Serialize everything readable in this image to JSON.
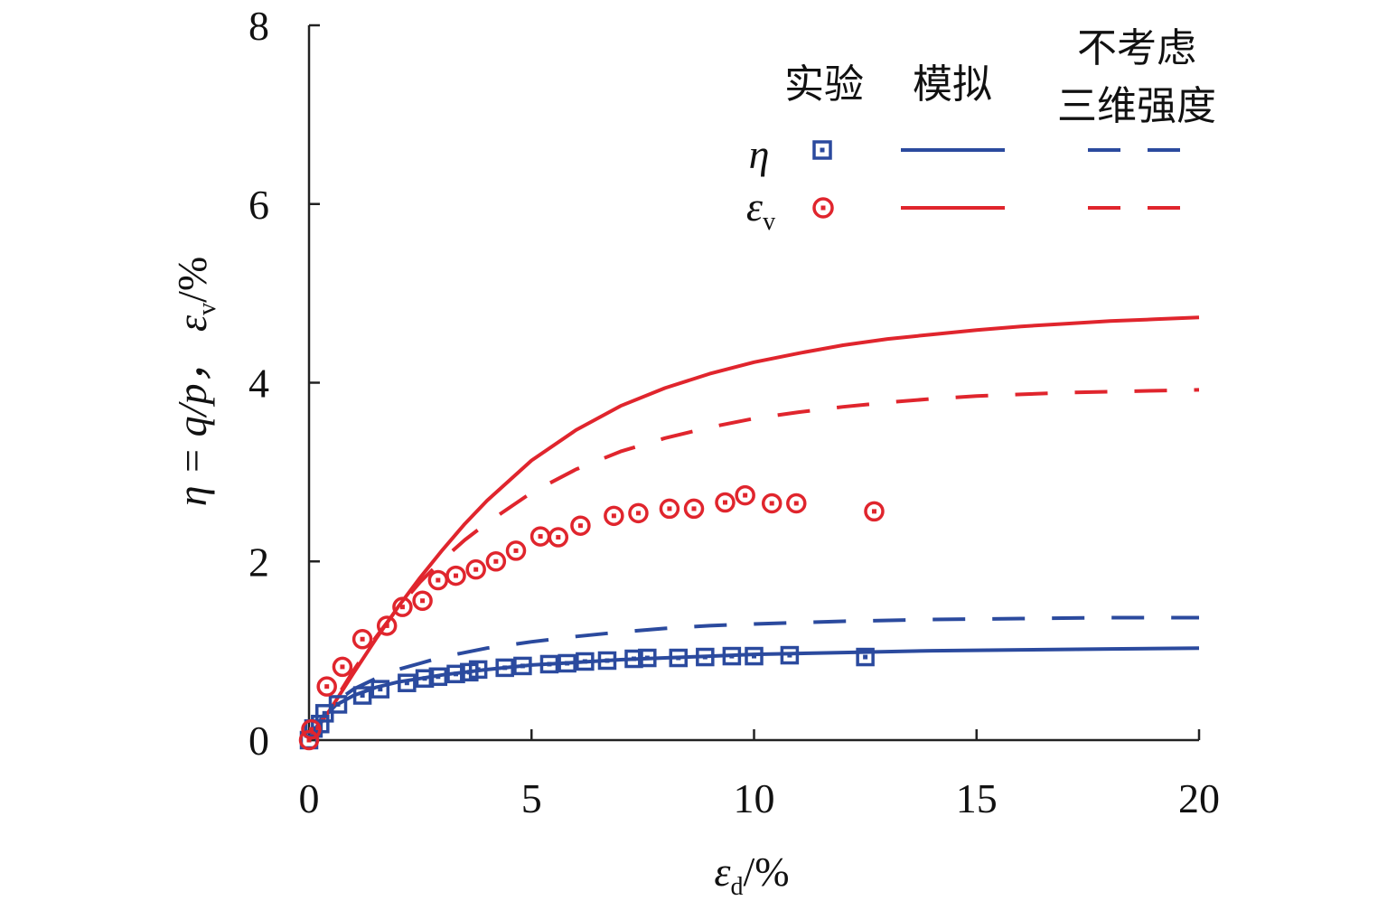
{
  "chart_data": {
    "type": "line",
    "xlabel": {
      "main": "ε",
      "sub": "d",
      "suffix": "/%"
    },
    "ylabel": {
      "main": "η = q/p， ε",
      "sub": "v",
      "suffix": "/%"
    },
    "xlim": [
      0,
      20
    ],
    "ylim": [
      0,
      8
    ],
    "xticks": [
      0,
      5,
      10,
      15,
      20
    ],
    "yticks": [
      0,
      2,
      4,
      6,
      8
    ],
    "legend": {
      "position": "top-right",
      "col_experiment": "实验",
      "col_simulation": "模拟",
      "col_no3d_line1": "不考虑",
      "col_no3d_line2": "三维强度",
      "row_eta": "η",
      "row_ev_main": "ε",
      "row_ev_sub": "v"
    },
    "colors": {
      "eta": "#2b4a9e",
      "ev": "#e0252d"
    },
    "series": [
      {
        "key": "eta_experiment",
        "marker": "square",
        "x": [
          0,
          0.1,
          0.25,
          0.35,
          0.65,
          1.2,
          1.6,
          2.2,
          2.6,
          2.9,
          3.3,
          3.6,
          3.8,
          4.4,
          4.8,
          5.4,
          5.8,
          6.2,
          6.7,
          7.3,
          7.6,
          8.3,
          8.9,
          9.5,
          10.0,
          10.8,
          12.5
        ],
        "y": [
          0,
          0.13,
          0.18,
          0.3,
          0.4,
          0.5,
          0.57,
          0.64,
          0.69,
          0.71,
          0.74,
          0.76,
          0.79,
          0.81,
          0.83,
          0.85,
          0.86,
          0.88,
          0.89,
          0.91,
          0.92,
          0.92,
          0.93,
          0.94,
          0.94,
          0.95,
          0.93
        ]
      },
      {
        "key": "ev_experiment",
        "marker": "circle",
        "x": [
          0,
          0.05,
          0.4,
          0.75,
          1.2,
          1.75,
          2.1,
          2.55,
          2.9,
          3.3,
          3.75,
          4.2,
          4.65,
          5.2,
          5.6,
          6.1,
          6.85,
          7.4,
          8.1,
          8.65,
          9.35,
          9.8,
          10.4,
          10.95,
          12.7
        ],
        "y": [
          0,
          0.12,
          0.6,
          0.82,
          1.13,
          1.28,
          1.49,
          1.56,
          1.79,
          1.84,
          1.91,
          2.0,
          2.12,
          2.28,
          2.27,
          2.4,
          2.51,
          2.54,
          2.59,
          2.59,
          2.66,
          2.74,
          2.65,
          2.65,
          2.56
        ]
      },
      {
        "key": "eta_simulation",
        "style": "solid",
        "x": [
          0,
          0.3,
          0.6,
          1,
          1.5,
          2,
          2.5,
          3,
          4,
          5,
          6,
          7,
          8,
          9,
          10,
          12,
          14,
          16,
          18,
          20
        ],
        "y": [
          0,
          0.24,
          0.39,
          0.5,
          0.59,
          0.65,
          0.69,
          0.73,
          0.79,
          0.84,
          0.87,
          0.9,
          0.92,
          0.94,
          0.96,
          0.98,
          1.0,
          1.01,
          1.02,
          1.03
        ]
      },
      {
        "key": "eta_no3d",
        "style": "dashed",
        "x": [
          0,
          0.3,
          0.6,
          1,
          1.5,
          2,
          2.5,
          3,
          4,
          5,
          6,
          7,
          8,
          9,
          10,
          12,
          14,
          16,
          18,
          20
        ],
        "y": [
          0,
          0.26,
          0.43,
          0.57,
          0.69,
          0.79,
          0.86,
          0.93,
          1.03,
          1.1,
          1.16,
          1.21,
          1.25,
          1.28,
          1.3,
          1.33,
          1.35,
          1.36,
          1.37,
          1.37
        ]
      },
      {
        "key": "ev_simulation",
        "style": "solid",
        "x": [
          0,
          0.5,
          1,
          1.5,
          2,
          2.5,
          3,
          3.5,
          4,
          5,
          6,
          7,
          8,
          9,
          10,
          11,
          12,
          13,
          14,
          15,
          16,
          17,
          18,
          19,
          20
        ],
        "y": [
          0,
          0.36,
          0.75,
          1.13,
          1.49,
          1.82,
          2.13,
          2.42,
          2.68,
          3.13,
          3.47,
          3.74,
          3.94,
          4.1,
          4.23,
          4.33,
          4.42,
          4.49,
          4.54,
          4.59,
          4.63,
          4.66,
          4.69,
          4.71,
          4.73
        ]
      },
      {
        "key": "ev_no3d",
        "style": "dashed",
        "x": [
          0,
          0.5,
          1,
          1.5,
          2,
          2.5,
          3,
          3.5,
          4,
          5,
          6,
          7,
          8,
          9,
          10,
          11,
          12,
          13,
          14,
          15,
          16,
          17,
          18,
          19,
          20
        ],
        "y": [
          0,
          0.38,
          0.78,
          1.15,
          1.48,
          1.77,
          2.02,
          2.24,
          2.43,
          2.77,
          3.03,
          3.23,
          3.38,
          3.5,
          3.6,
          3.67,
          3.73,
          3.78,
          3.82,
          3.85,
          3.87,
          3.89,
          3.9,
          3.91,
          3.92
        ]
      }
    ]
  }
}
